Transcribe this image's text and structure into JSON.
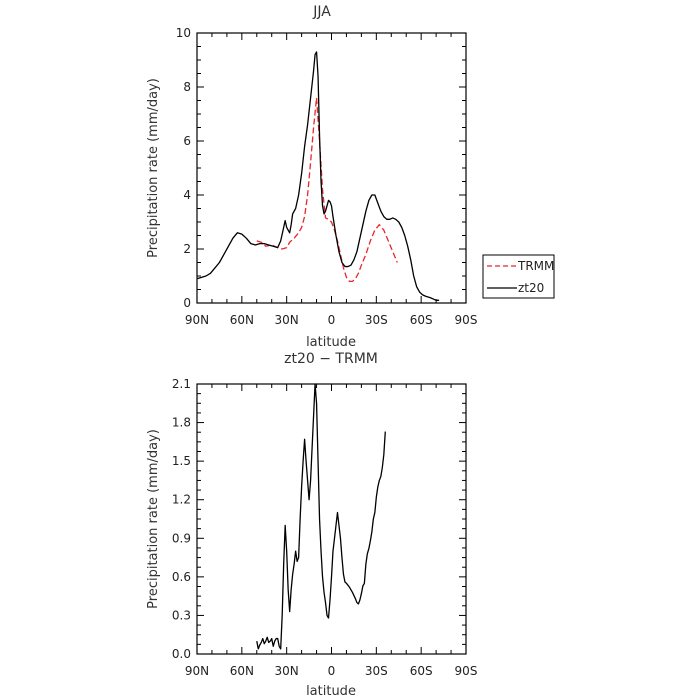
{
  "chart_data": [
    {
      "type": "line",
      "title": "JJA",
      "xlabel": "latitude",
      "ylabel": "Precipitation rate (mm/day)",
      "xlim": [
        90,
        -90
      ],
      "ylim": [
        0,
        10
      ],
      "xticks": [
        90,
        60,
        30,
        0,
        -30,
        -60,
        -90
      ],
      "xticklabels": [
        "90N",
        "60N",
        "30N",
        "0",
        "30S",
        "60S",
        "90S"
      ],
      "yticks": [
        0,
        2,
        4,
        6,
        8,
        10
      ],
      "yticklabels": [
        "0",
        "2",
        "4",
        "6",
        "8",
        "10"
      ],
      "legend": "right",
      "series": [
        {
          "name": "TRMM",
          "color": "#e8262b",
          "dash": "dashed",
          "points": [
            [
              50,
              2.3
            ],
            [
              47,
              2.25
            ],
            [
              44,
              2.1
            ],
            [
              40,
              2.15
            ],
            [
              36,
              2.05
            ],
            [
              33,
              2.0
            ],
            [
              30,
              2.05
            ],
            [
              28,
              2.25
            ],
            [
              25,
              2.4
            ],
            [
              22,
              2.6
            ],
            [
              20,
              2.8
            ],
            [
              18,
              3.2
            ],
            [
              16,
              4.0
            ],
            [
              14,
              5.2
            ],
            [
              12,
              6.5
            ],
            [
              10,
              7.6
            ],
            [
              8,
              6.0
            ],
            [
              6,
              4.2
            ],
            [
              4,
              3.15
            ],
            [
              2,
              3.1
            ],
            [
              0,
              3.0
            ],
            [
              -2,
              2.7
            ],
            [
              -4,
              2.3
            ],
            [
              -6,
              1.8
            ],
            [
              -8,
              1.3
            ],
            [
              -10,
              0.95
            ],
            [
              -12,
              0.8
            ],
            [
              -14,
              0.8
            ],
            [
              -16,
              0.9
            ],
            [
              -18,
              1.1
            ],
            [
              -20,
              1.4
            ],
            [
              -23,
              1.8
            ],
            [
              -26,
              2.3
            ],
            [
              -29,
              2.7
            ],
            [
              -32,
              2.9
            ],
            [
              -35,
              2.7
            ],
            [
              -38,
              2.3
            ],
            [
              -41,
              1.9
            ],
            [
              -44,
              1.5
            ]
          ]
        },
        {
          "name": "zt20",
          "color": "#000000",
          "dash": "solid",
          "points": [
            [
              90,
              0.9
            ],
            [
              87,
              0.95
            ],
            [
              84,
              1.0
            ],
            [
              81,
              1.1
            ],
            [
              78,
              1.3
            ],
            [
              75,
              1.5
            ],
            [
              72,
              1.8
            ],
            [
              69,
              2.1
            ],
            [
              66,
              2.4
            ],
            [
              63,
              2.6
            ],
            [
              60,
              2.55
            ],
            [
              57,
              2.4
            ],
            [
              54,
              2.2
            ],
            [
              51,
              2.15
            ],
            [
              48,
              2.2
            ],
            [
              45,
              2.2
            ],
            [
              42,
              2.15
            ],
            [
              39,
              2.1
            ],
            [
              36,
              2.05
            ],
            [
              34,
              2.3
            ],
            [
              32,
              2.8
            ],
            [
              31,
              3.05
            ],
            [
              30,
              2.8
            ],
            [
              28,
              2.6
            ],
            [
              27,
              2.9
            ],
            [
              26,
              3.3
            ],
            [
              24,
              3.5
            ],
            [
              22,
              4.0
            ],
            [
              20,
              4.8
            ],
            [
              18,
              5.8
            ],
            [
              16,
              6.6
            ],
            [
              14,
              7.6
            ],
            [
              12,
              8.6
            ],
            [
              11,
              9.2
            ],
            [
              10,
              9.3
            ],
            [
              9,
              8.4
            ],
            [
              8,
              6.2
            ],
            [
              7,
              4.5
            ],
            [
              6,
              3.6
            ],
            [
              5,
              3.3
            ],
            [
              4,
              3.4
            ],
            [
              3,
              3.6
            ],
            [
              2,
              3.8
            ],
            [
              1,
              3.75
            ],
            [
              0,
              3.6
            ],
            [
              -1,
              3.2
            ],
            [
              -3,
              2.5
            ],
            [
              -5,
              1.9
            ],
            [
              -7,
              1.5
            ],
            [
              -9,
              1.35
            ],
            [
              -11,
              1.35
            ],
            [
              -13,
              1.4
            ],
            [
              -15,
              1.6
            ],
            [
              -17,
              1.9
            ],
            [
              -19,
              2.4
            ],
            [
              -21,
              2.9
            ],
            [
              -23,
              3.4
            ],
            [
              -25,
              3.8
            ],
            [
              -27,
              4.0
            ],
            [
              -29,
              4.0
            ],
            [
              -31,
              3.7
            ],
            [
              -33,
              3.4
            ],
            [
              -35,
              3.2
            ],
            [
              -37,
              3.1
            ],
            [
              -39,
              3.1
            ],
            [
              -41,
              3.15
            ],
            [
              -43,
              3.1
            ],
            [
              -45,
              3.0
            ],
            [
              -47,
              2.8
            ],
            [
              -49,
              2.5
            ],
            [
              -51,
              2.1
            ],
            [
              -53,
              1.6
            ],
            [
              -55,
              1.0
            ],
            [
              -57,
              0.6
            ],
            [
              -59,
              0.4
            ],
            [
              -61,
              0.3
            ],
            [
              -63,
              0.25
            ],
            [
              -66,
              0.2
            ],
            [
              -68,
              0.15
            ],
            [
              -70,
              0.1
            ],
            [
              -72,
              0.1
            ]
          ]
        }
      ]
    },
    {
      "type": "line",
      "title": "zt20 − TRMM",
      "xlabel": "latitude",
      "ylabel": "Precipitation rate (mm/day)",
      "xlim": [
        90,
        -90
      ],
      "ylim": [
        0,
        2.1
      ],
      "xticks": [
        90,
        60,
        30,
        0,
        -30,
        -60,
        -90
      ],
      "xticklabels": [
        "90N",
        "60N",
        "30N",
        "0",
        "30S",
        "60S",
        "90S"
      ],
      "yticks": [
        0,
        0.3,
        0.6,
        0.9,
        1.2,
        1.5,
        1.8,
        2.1
      ],
      "yticklabels": [
        "0.0",
        "0.3",
        "0.6",
        "0.9",
        "1.2",
        "1.5",
        "1.8",
        "2.1"
      ],
      "series": [
        {
          "color": "#000000",
          "dash": "solid",
          "points": [
            [
              50,
              0.1
            ],
            [
              49,
              0.04
            ],
            [
              48,
              0.07
            ],
            [
              47,
              0.09
            ],
            [
              46,
              0.12
            ],
            [
              45,
              0.08
            ],
            [
              44,
              0.1
            ],
            [
              43,
              0.13
            ],
            [
              42,
              0.09
            ],
            [
              41,
              0.1
            ],
            [
              40,
              0.12
            ],
            [
              39,
              0.06
            ],
            [
              38,
              0.1
            ],
            [
              37,
              0.12
            ],
            [
              36,
              0.12
            ],
            [
              35,
              0.06
            ],
            [
              34,
              0.04
            ],
            [
              33,
              0.3
            ],
            [
              32,
              0.7
            ],
            [
              31,
              1.0
            ],
            [
              30,
              0.8
            ],
            [
              29,
              0.5
            ],
            [
              28,
              0.33
            ],
            [
              27,
              0.5
            ],
            [
              26,
              0.62
            ],
            [
              25,
              0.7
            ],
            [
              24,
              0.8
            ],
            [
              23,
              0.72
            ],
            [
              22,
              0.75
            ],
            [
              21,
              1.05
            ],
            [
              20,
              1.3
            ],
            [
              19,
              1.5
            ],
            [
              18,
              1.67
            ],
            [
              17,
              1.5
            ],
            [
              16,
              1.35
            ],
            [
              15,
              1.2
            ],
            [
              14,
              1.35
            ],
            [
              13,
              1.6
            ],
            [
              12,
              1.85
            ],
            [
              11,
              2.1
            ],
            [
              10,
              1.95
            ],
            [
              9,
              1.5
            ],
            [
              8,
              1.05
            ],
            [
              7,
              0.8
            ],
            [
              6,
              0.6
            ],
            [
              5,
              0.48
            ],
            [
              4,
              0.4
            ],
            [
              3,
              0.3
            ],
            [
              2,
              0.28
            ],
            [
              1,
              0.42
            ],
            [
              0,
              0.6
            ],
            [
              -1,
              0.8
            ],
            [
              -2,
              0.9
            ],
            [
              -3,
              1.0
            ],
            [
              -4,
              1.1
            ],
            [
              -5,
              1.0
            ],
            [
              -6,
              0.9
            ],
            [
              -7,
              0.75
            ],
            [
              -8,
              0.62
            ],
            [
              -9,
              0.56
            ],
            [
              -10,
              0.55
            ],
            [
              -12,
              0.52
            ],
            [
              -14,
              0.48
            ],
            [
              -16,
              0.43
            ],
            [
              -17,
              0.4
            ],
            [
              -18,
              0.39
            ],
            [
              -19,
              0.42
            ],
            [
              -20,
              0.47
            ],
            [
              -21,
              0.53
            ],
            [
              -22,
              0.55
            ],
            [
              -23,
              0.7
            ],
            [
              -24,
              0.78
            ],
            [
              -25,
              0.82
            ],
            [
              -26,
              0.88
            ],
            [
              -27,
              0.95
            ],
            [
              -28,
              1.05
            ],
            [
              -29,
              1.1
            ],
            [
              -30,
              1.22
            ],
            [
              -31,
              1.3
            ],
            [
              -32,
              1.35
            ],
            [
              -33,
              1.38
            ],
            [
              -34,
              1.45
            ],
            [
              -35,
              1.55
            ],
            [
              -36,
              1.73
            ]
          ]
        }
      ]
    }
  ]
}
